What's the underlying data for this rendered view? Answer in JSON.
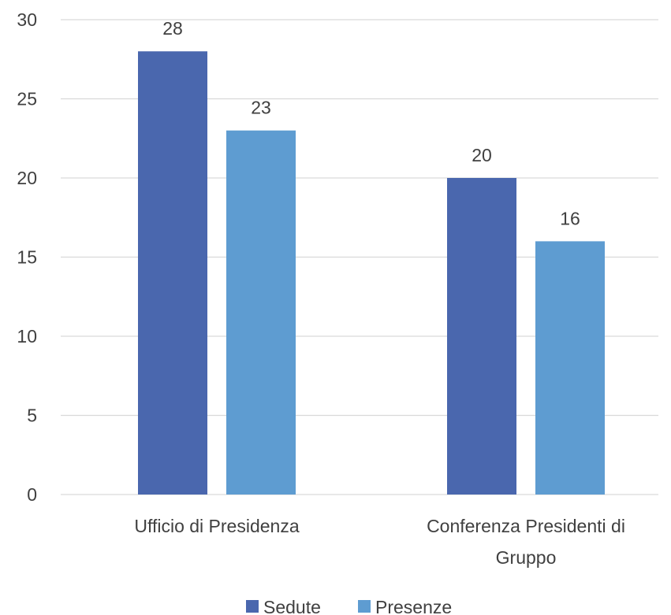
{
  "chart_data": {
    "type": "bar",
    "categories": [
      [
        "Ufficio di Presidenza"
      ],
      [
        "Conferenza Presidenti di",
        "Gruppo"
      ]
    ],
    "series": [
      {
        "name": "Sedute",
        "values": [
          28,
          20
        ],
        "color": "#4A67AE"
      },
      {
        "name": "Presenze",
        "values": [
          23,
          16
        ],
        "color": "#5E9CD1"
      }
    ],
    "ylim": [
      0,
      30
    ],
    "yticks": [
      0,
      5,
      10,
      15,
      20,
      25,
      30
    ],
    "grid": true,
    "legend": "bottom",
    "gridline_color": "#D9D9D9"
  }
}
